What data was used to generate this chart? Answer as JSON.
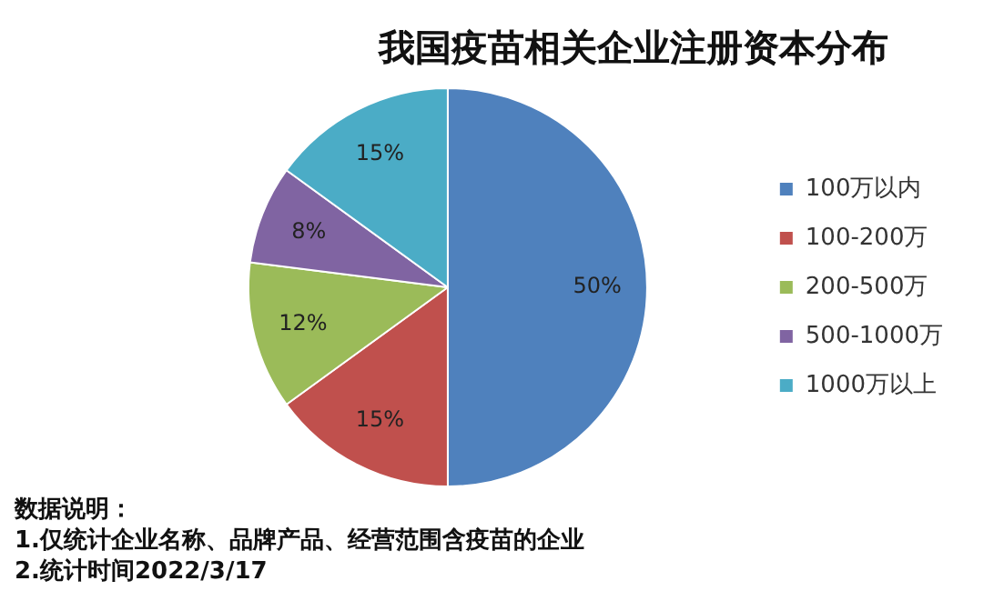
{
  "chart_data": {
    "type": "pie",
    "title": "我国疫苗相关企业注册资本分布",
    "categories": [
      "100万以内",
      "100-200万",
      "200-500万",
      "500-1000万",
      "1000万以上"
    ],
    "values": [
      50,
      15,
      12,
      8,
      15
    ],
    "colors": [
      "#4f81bd",
      "#c0504d",
      "#9bbb59",
      "#8064a2",
      "#4bacc6"
    ],
    "value_labels": [
      "50%",
      "15%",
      "12%",
      "8%",
      "15%"
    ],
    "legend": "right",
    "annotations": [
      "数据说明：",
      "1.仅统计企业名称、品牌产品、经营范围含疫苗的企业",
      "2.统计时间2022/3/17"
    ]
  }
}
